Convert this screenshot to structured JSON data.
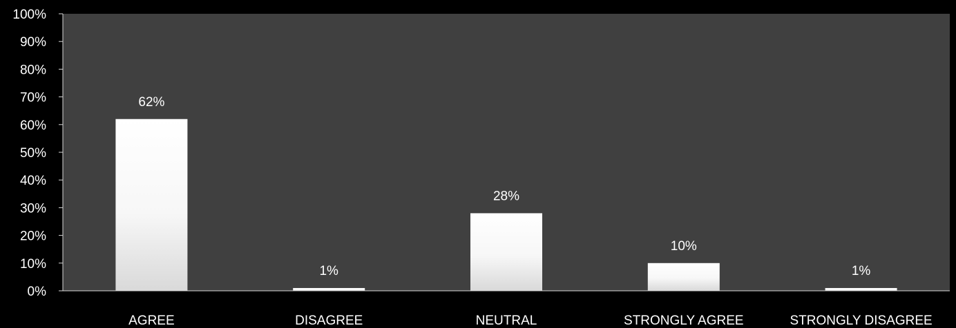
{
  "chart_data": {
    "type": "bar",
    "categories": [
      "AGREE",
      "DISAGREE",
      "NEUTRAL",
      "STRONGLY AGREE",
      "STRONGLY DISAGREE"
    ],
    "values": [
      62,
      1,
      28,
      10,
      1
    ],
    "data_labels": [
      "62%",
      "1%",
      "28%",
      "10%",
      "1%"
    ],
    "y_ticks": [
      "0%",
      "10%",
      "20%",
      "30%",
      "40%",
      "50%",
      "60%",
      "70%",
      "80%",
      "90%",
      "100%"
    ],
    "ylim": [
      0,
      100
    ],
    "title": "",
    "xlabel": "",
    "ylabel": "",
    "grid": false,
    "legend": "none",
    "colors": {
      "page_background": "#000000",
      "plot_background": "#404040",
      "bar_top": "#ffffff",
      "bar_bottom": "#d9d9d9",
      "text": "#ffffff",
      "axis": "#d9d9d9"
    }
  }
}
